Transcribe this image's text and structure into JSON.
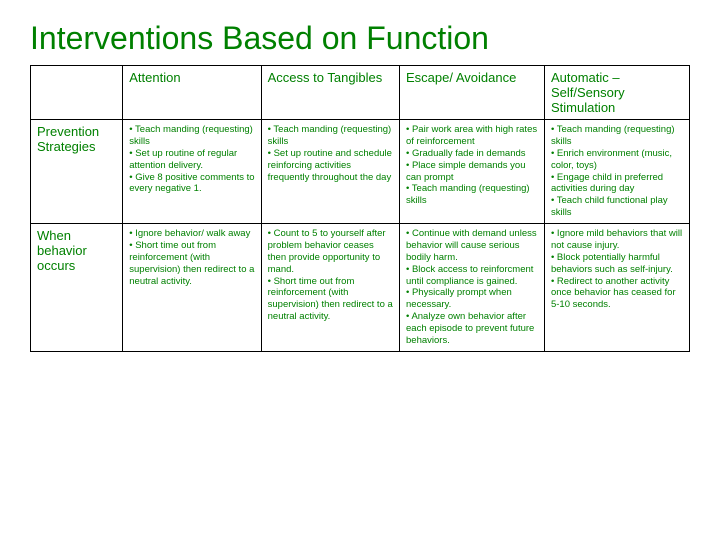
{
  "title": "Interventions Based on Function",
  "columns": [
    "",
    "Attention",
    "Access to Tangibles",
    "Escape/ Avoidance",
    "Automatic – Self/Sensory Stimulation"
  ],
  "rows": [
    {
      "header": "Prevention Strategies",
      "cells": [
        "• Teach manding (requesting) skills\n• Set up routine of regular attention delivery.\n• Give 8 positive comments to every negative 1.",
        "• Teach manding (requesting)  skills\n• Set up routine and schedule reinforcing activities frequently throughout the day",
        "• Pair work area with high rates of reinforcement\n• Gradually fade in demands\n• Place simple demands you can prompt\n• Teach manding (requesting) skills",
        "• Teach manding (requesting) skills\n• Enrich environment (music, color, toys)\n• Engage child in preferred activities during day\n• Teach child functional play skills"
      ]
    },
    {
      "header": "When behavior occurs",
      "cells": [
        "• Ignore behavior/ walk away\n• Short time out from reinforcement (with supervision) then redirect to a neutral activity.",
        "• Count to 5 to yourself after problem behavior ceases then provide opportunity to mand.\n• Short time out from reinforcement (with supervision) then redirect to a neutral activity.",
        "• Continue with demand unless behavior will cause serious bodily harm.\n• Block access to reinforcment until compliance is gained.\n• Physically prompt when necessary.\n• Analyze own behavior after each episode to prevent future behaviors.",
        "• Ignore mild behaviors that will not cause injury.\n• Block potentially harmful behaviors such as self-injury.\n• Redirect to another activity once behavior has ceased for 5-10 seconds."
      ]
    }
  ],
  "colors": {
    "text": "#008000",
    "border": "#000000",
    "background": "#ffffff"
  }
}
